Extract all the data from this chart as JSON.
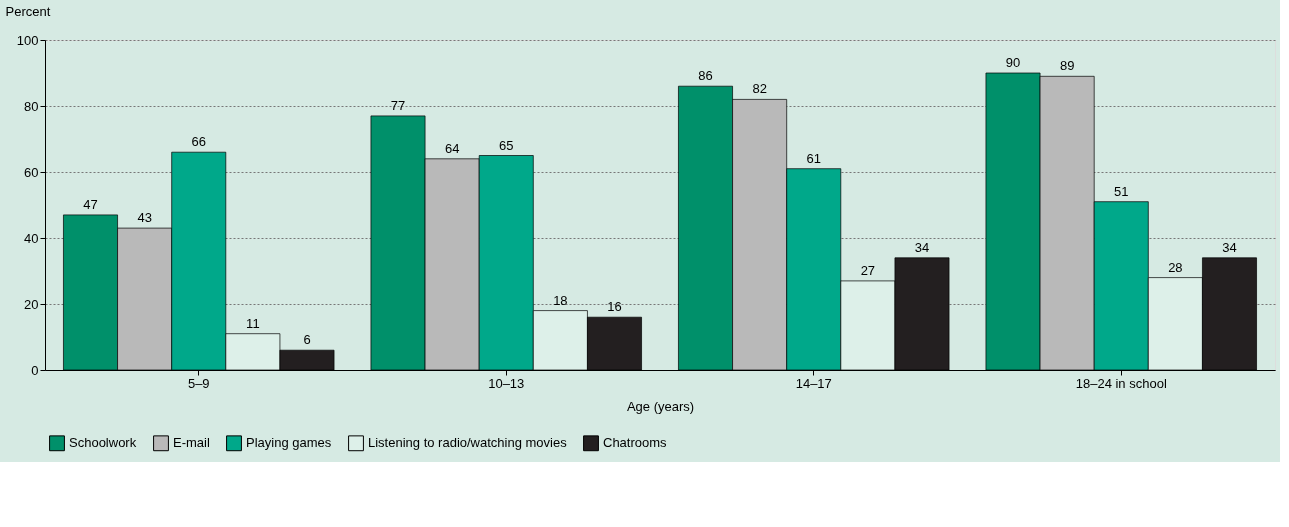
{
  "chart_data": {
    "type": "bar",
    "xlabel": "Age (years)",
    "ylabel": "Percent",
    "categories": [
      "5–9",
      "10–13",
      "14–17",
      "18–24 in school"
    ],
    "series": [
      {
        "name": "Schoolwork",
        "color": "#00906a",
        "values": [
          47,
          77,
          86,
          90
        ]
      },
      {
        "name": "E-mail",
        "color": "#b9b9b9",
        "values": [
          43,
          64,
          82,
          89
        ]
      },
      {
        "name": "Playing games",
        "color": "#00a88a",
        "values": [
          66,
          65,
          61,
          51
        ]
      },
      {
        "name": "Listening to radio/watching movies",
        "color": "#ddf0e9",
        "values": [
          11,
          18,
          27,
          28
        ]
      },
      {
        "name": "Chatrooms",
        "color": "#231f20",
        "values": [
          6,
          16,
          34,
          34
        ]
      }
    ],
    "ylim": [
      0,
      100
    ],
    "yticks": [
      0,
      20,
      40,
      60,
      80,
      100
    ],
    "grid": "y",
    "legend": "bottom",
    "data_labels": true
  }
}
